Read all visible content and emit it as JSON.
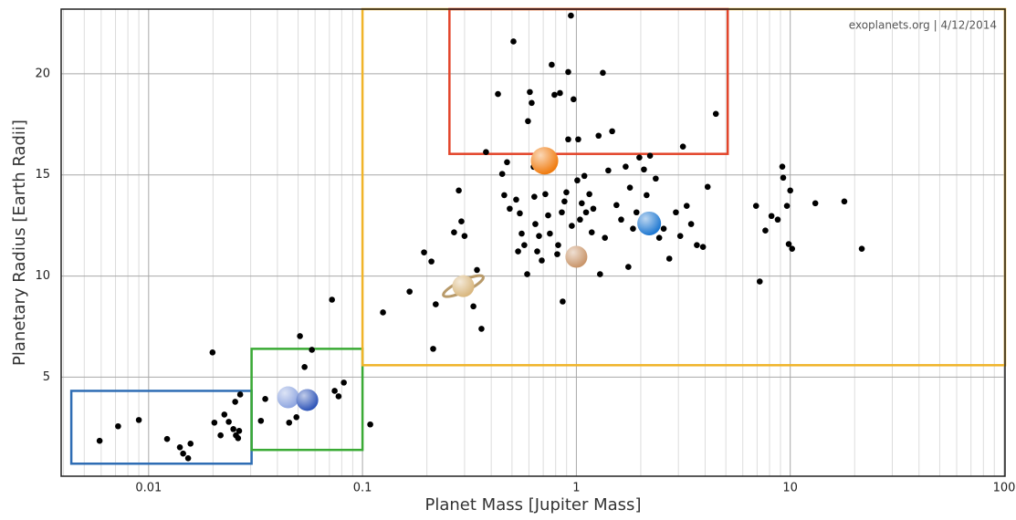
{
  "chart_data": {
    "type": "scatter",
    "xlabel": "Planet Mass [Jupiter Mass]",
    "ylabel": "Planetary Radius [Earth Radii]",
    "annotation": "exoplanets.org | 4/12/2014",
    "xscale": "log",
    "xlim": [
      0.0039,
      101
    ],
    "ylim": [
      0.1,
      23.2
    ],
    "xticks": [
      0.01,
      0.1,
      1,
      10,
      100
    ],
    "yticks": [
      5,
      10,
      15,
      20
    ],
    "x_minor_gridlines": [
      0.004,
      0.005,
      0.006,
      0.007,
      0.008,
      0.009,
      0.02,
      0.03,
      0.04,
      0.05,
      0.06,
      0.07,
      0.08,
      0.09,
      0.2,
      0.3,
      0.4,
      0.5,
      0.6,
      0.7,
      0.8,
      0.9,
      2,
      3,
      4,
      5,
      6,
      7,
      8,
      9,
      20,
      30,
      40,
      50,
      60,
      70,
      80,
      90
    ],
    "grid": true,
    "regions": [
      {
        "color": "#2e6db4",
        "x": [
          0.00435,
          0.0303
        ],
        "y": [
          0.72,
          4.32
        ]
      },
      {
        "color": "#3aaa35",
        "x": [
          0.0303,
          0.1
        ],
        "y": [
          1.4,
          6.4
        ]
      },
      {
        "color": "#f0b429",
        "x": [
          0.1,
          101
        ],
        "y": [
          5.59,
          23.2
        ]
      },
      {
        "color": "#e2452a",
        "x": [
          0.255,
          5.1
        ],
        "y": [
          16.04,
          23.2
        ]
      }
    ],
    "series": [
      {
        "color": "#000000",
        "x": [
          0.0059,
          0.0072,
          0.009,
          0.0122,
          0.014,
          0.0145,
          0.0153,
          0.0157,
          0.0199,
          0.0203,
          0.0217,
          0.0226,
          0.0237,
          0.0249,
          0.0254,
          0.0256,
          0.0262,
          0.0265,
          0.0268,
          0.0335,
          0.0351,
          0.0454,
          0.0491,
          0.051,
          0.0536,
          0.058,
          0.0741,
          0.0773,
          0.0818,
          0.072,
          0.1087,
          0.1247,
          0.166,
          0.194,
          0.21,
          0.214,
          0.22,
          0.282,
          0.29,
          0.3,
          0.268,
          0.33,
          0.36,
          0.343,
          0.378,
          0.43,
          0.45,
          0.474,
          0.46,
          0.488,
          0.508,
          0.523,
          0.534,
          0.544,
          0.555,
          0.571,
          0.589,
          0.594,
          0.606,
          0.618,
          0.631,
          0.636,
          0.643,
          0.656,
          0.669,
          0.689,
          0.703,
          0.716,
          0.738,
          0.752,
          0.767,
          0.79,
          0.814,
          0.822,
          0.838,
          0.855,
          0.863,
          0.88,
          0.898,
          0.916,
          0.916,
          0.943,
          0.952,
          0.97,
          1.01,
          1.02,
          1.04,
          1.06,
          1.09,
          1.11,
          1.15,
          1.18,
          1.2,
          1.27,
          1.29,
          1.33,
          1.36,
          1.41,
          1.47,
          1.54,
          1.62,
          1.7,
          1.75,
          1.78,
          1.84,
          1.91,
          1.97,
          2.07,
          2.13,
          2.21,
          2.35,
          2.44,
          2.56,
          2.72,
          2.92,
          3.06,
          3.15,
          3.28,
          3.44,
          3.66,
          3.91,
          4.11,
          4.49,
          6.92,
          7.2,
          7.65,
          8.17,
          8.74,
          9.18,
          9.27,
          9.65,
          10.0,
          9.84,
          10.2,
          13.1,
          17.9,
          21.6
        ],
        "values": [
          1.85,
          2.57,
          2.88,
          1.94,
          1.53,
          1.22,
          0.99,
          1.71,
          6.22,
          2.75,
          2.12,
          3.15,
          2.79,
          2.43,
          3.78,
          2.12,
          1.98,
          2.34,
          4.14,
          2.84,
          3.92,
          2.75,
          3.02,
          7.03,
          5.5,
          6.35,
          4.32,
          4.05,
          4.73,
          8.83,
          2.66,
          8.2,
          9.23,
          11.17,
          10.72,
          6.4,
          8.6,
          14.23,
          12.7,
          11.98,
          12.16,
          8.5,
          7.39,
          10.3,
          16.13,
          19.0,
          15.05,
          15.63,
          14.0,
          13.33,
          21.6,
          13.78,
          11.22,
          13.1,
          12.1,
          11.53,
          10.09,
          17.66,
          19.1,
          18.56,
          15.4,
          13.92,
          12.57,
          11.22,
          11.98,
          10.77,
          16.13,
          14.05,
          13.0,
          12.1,
          20.45,
          18.96,
          11.08,
          11.53,
          19.05,
          13.15,
          8.74,
          13.69,
          14.14,
          20.09,
          16.76,
          22.88,
          12.48,
          18.74,
          14.73,
          16.76,
          12.79,
          13.6,
          14.95,
          13.15,
          14.05,
          12.16,
          13.33,
          16.94,
          10.09,
          20.05,
          11.89,
          15.22,
          17.16,
          13.51,
          12.79,
          15.41,
          10.45,
          14.37,
          12.34,
          13.15,
          15.86,
          15.27,
          14.0,
          15.95,
          14.82,
          11.89,
          12.34,
          10.86,
          13.15,
          11.98,
          16.4,
          13.47,
          12.57,
          11.53,
          11.44,
          14.41,
          18.02,
          13.47,
          9.73,
          12.25,
          12.97,
          12.79,
          15.41,
          14.86,
          13.47,
          14.23,
          11.58,
          11.35,
          13.6,
          13.69,
          11.35
        ]
      },
      {
        "color": "#d9b77e",
        "x": [
          0.296
        ],
        "values": [
          9.5
        ]
      },
      {
        "color": "#c9956a",
        "x": [
          1.0
        ],
        "values": [
          10.95
        ]
      },
      {
        "color": "#f07c10",
        "x": [
          0.71
        ],
        "values": [
          15.7
        ]
      },
      {
        "color": "#1f78d1",
        "x": [
          2.19
        ],
        "values": [
          12.6
        ]
      },
      {
        "color": "#8fa6e0",
        "x": [
          0.0449
        ],
        "values": [
          4.0
        ]
      },
      {
        "color": "#2f55b8",
        "x": [
          0.0552
        ],
        "values": [
          3.87
        ]
      }
    ]
  }
}
